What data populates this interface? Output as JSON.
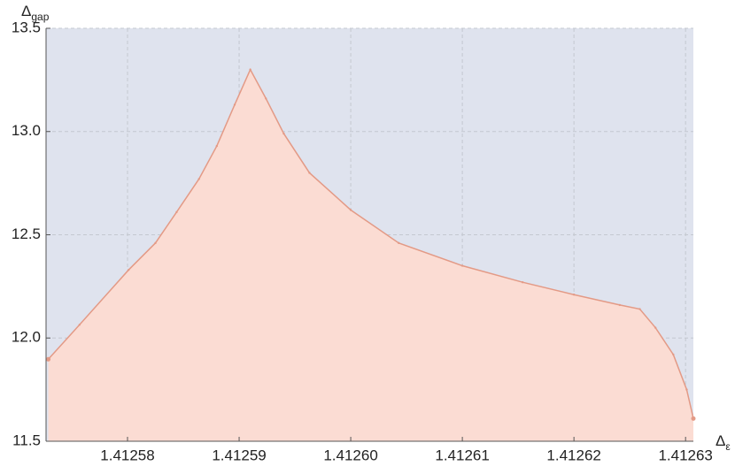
{
  "chart_data": {
    "type": "area",
    "xlabel": "Δ",
    "xlabel_sub": "ε",
    "ylabel": "Δ",
    "ylabel_sub": "gap",
    "x": [
      1.4125729,
      1.4125757,
      1.4125801,
      1.4125825,
      1.4125844,
      1.4125864,
      1.412588,
      1.4125896,
      1.412591,
      1.4125924,
      1.412594,
      1.4125963,
      1.4126,
      1.4126043,
      1.41261,
      1.4126154,
      1.41262,
      1.4126241,
      1.4126259,
      1.4126273,
      1.4126289,
      1.4126301,
      1.4126307
    ],
    "values": [
      11.897,
      12.064,
      12.33,
      12.46,
      12.61,
      12.77,
      12.93,
      13.13,
      13.3,
      13.16,
      12.99,
      12.8,
      12.62,
      12.46,
      12.35,
      12.27,
      12.21,
      12.16,
      12.14,
      12.05,
      11.92,
      11.75,
      11.61
    ],
    "color": "#e39a86",
    "fill": "#fbdcd3",
    "background": "#dfe3ee",
    "xlim": [
      1.4125727,
      1.4126307
    ],
    "ylim": [
      11.5,
      13.5
    ],
    "xticks": [
      1.41258,
      1.41259,
      {
        "value": 1.4126,
        "label": "1.41260"
      },
      1.41261,
      1.41262,
      1.41263
    ],
    "yticks": [
      11.5,
      {
        "value": 12,
        "label": "12.0"
      },
      12.5,
      {
        "value": 13,
        "label": "13.0"
      },
      13.5
    ],
    "grid": true
  }
}
